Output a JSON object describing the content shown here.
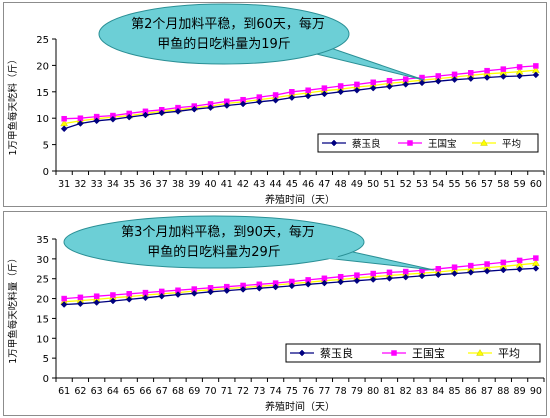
{
  "chart_data": [
    {
      "type": "line",
      "callout": [
        "第2个月加料平稳，到60天，每万",
        "甲鱼的日吃料量为19斤"
      ],
      "xlabel": "养殖时间（天）",
      "ylabel": "1万甲鱼每天吃料（斤）",
      "ylim": [
        0,
        25
      ],
      "yticks": [
        0,
        5,
        10,
        15,
        20,
        25
      ],
      "grid": false,
      "legend_position": "bottom-right",
      "x": [
        31,
        32,
        33,
        34,
        35,
        36,
        37,
        38,
        39,
        40,
        41,
        42,
        43,
        44,
        45,
        46,
        47,
        48,
        49,
        50,
        51,
        52,
        53,
        54,
        55,
        56,
        57,
        58,
        59,
        60
      ],
      "series": [
        {
          "name": "蔡玉良",
          "color": "#000080",
          "marker": "diamond",
          "values": [
            8.0,
            9.0,
            9.5,
            9.8,
            10.2,
            10.6,
            11.0,
            11.3,
            11.7,
            12.0,
            12.4,
            12.7,
            13.1,
            13.4,
            13.9,
            14.2,
            14.6,
            15.0,
            15.3,
            15.7,
            16.0,
            16.4,
            16.7,
            17.0,
            17.3,
            17.5,
            17.7,
            17.9,
            18.0,
            18.2
          ]
        },
        {
          "name": "王国宝",
          "color": "#ff00ff",
          "marker": "square",
          "values": [
            9.9,
            10.0,
            10.3,
            10.5,
            10.9,
            11.3,
            11.6,
            12.0,
            12.3,
            12.7,
            13.2,
            13.5,
            14.0,
            14.4,
            15.0,
            15.3,
            15.7,
            16.1,
            16.4,
            16.8,
            17.1,
            17.4,
            17.7,
            18.0,
            18.3,
            18.6,
            19.0,
            19.3,
            19.7,
            19.9
          ]
        },
        {
          "name": "平均",
          "color": "#ffff00",
          "marker": "triangle",
          "values": [
            9.0,
            9.5,
            9.9,
            10.2,
            10.5,
            10.9,
            11.3,
            11.6,
            12.0,
            12.3,
            12.8,
            13.1,
            13.5,
            13.9,
            14.4,
            14.8,
            15.2,
            15.5,
            15.9,
            16.2,
            16.6,
            16.9,
            17.2,
            17.5,
            17.8,
            18.1,
            18.4,
            18.6,
            18.8,
            19.1
          ]
        }
      ]
    },
    {
      "type": "line",
      "callout": [
        "第3个月加料平稳，到90天，每万",
        "甲鱼的日吃料量为29斤"
      ],
      "xlabel": "养殖时间（天）",
      "ylabel": "1万甲鱼每天吃料量（斤）",
      "ylim": [
        0,
        35
      ],
      "yticks": [
        0,
        5,
        10,
        15,
        20,
        25,
        30,
        35
      ],
      "grid": false,
      "legend_position": "bottom-right",
      "x": [
        61,
        62,
        63,
        64,
        65,
        66,
        67,
        68,
        69,
        70,
        71,
        72,
        73,
        74,
        75,
        76,
        77,
        78,
        79,
        80,
        81,
        82,
        83,
        84,
        85,
        86,
        87,
        88,
        89,
        90
      ],
      "series": [
        {
          "name": "蔡玉良",
          "color": "#000080",
          "marker": "diamond",
          "values": [
            18.5,
            18.7,
            19.0,
            19.4,
            19.8,
            20.2,
            20.6,
            21.0,
            21.3,
            21.7,
            22.0,
            22.3,
            22.6,
            22.9,
            23.2,
            23.6,
            23.9,
            24.2,
            24.5,
            24.8,
            25.1,
            25.4,
            25.7,
            26.0,
            26.3,
            26.6,
            26.9,
            27.2,
            27.4,
            27.6
          ]
        },
        {
          "name": "王国宝",
          "color": "#ff00ff",
          "marker": "square",
          "values": [
            20.0,
            20.3,
            20.6,
            20.9,
            21.2,
            21.5,
            21.8,
            22.1,
            22.4,
            22.7,
            23.0,
            23.3,
            23.6,
            23.9,
            24.3,
            24.7,
            25.1,
            25.5,
            25.9,
            26.3,
            26.6,
            26.8,
            27.1,
            27.5,
            27.9,
            28.3,
            28.7,
            29.1,
            29.6,
            30.2
          ]
        },
        {
          "name": "平均",
          "color": "#ffff00",
          "marker": "triangle",
          "values": [
            19.2,
            19.5,
            19.8,
            20.2,
            20.5,
            20.9,
            21.2,
            21.5,
            21.9,
            22.2,
            22.5,
            22.8,
            23.1,
            23.4,
            23.8,
            24.1,
            24.5,
            24.8,
            25.2,
            25.5,
            25.8,
            26.1,
            26.4,
            26.7,
            27.1,
            27.4,
            27.8,
            28.1,
            28.5,
            28.9
          ]
        }
      ]
    }
  ]
}
